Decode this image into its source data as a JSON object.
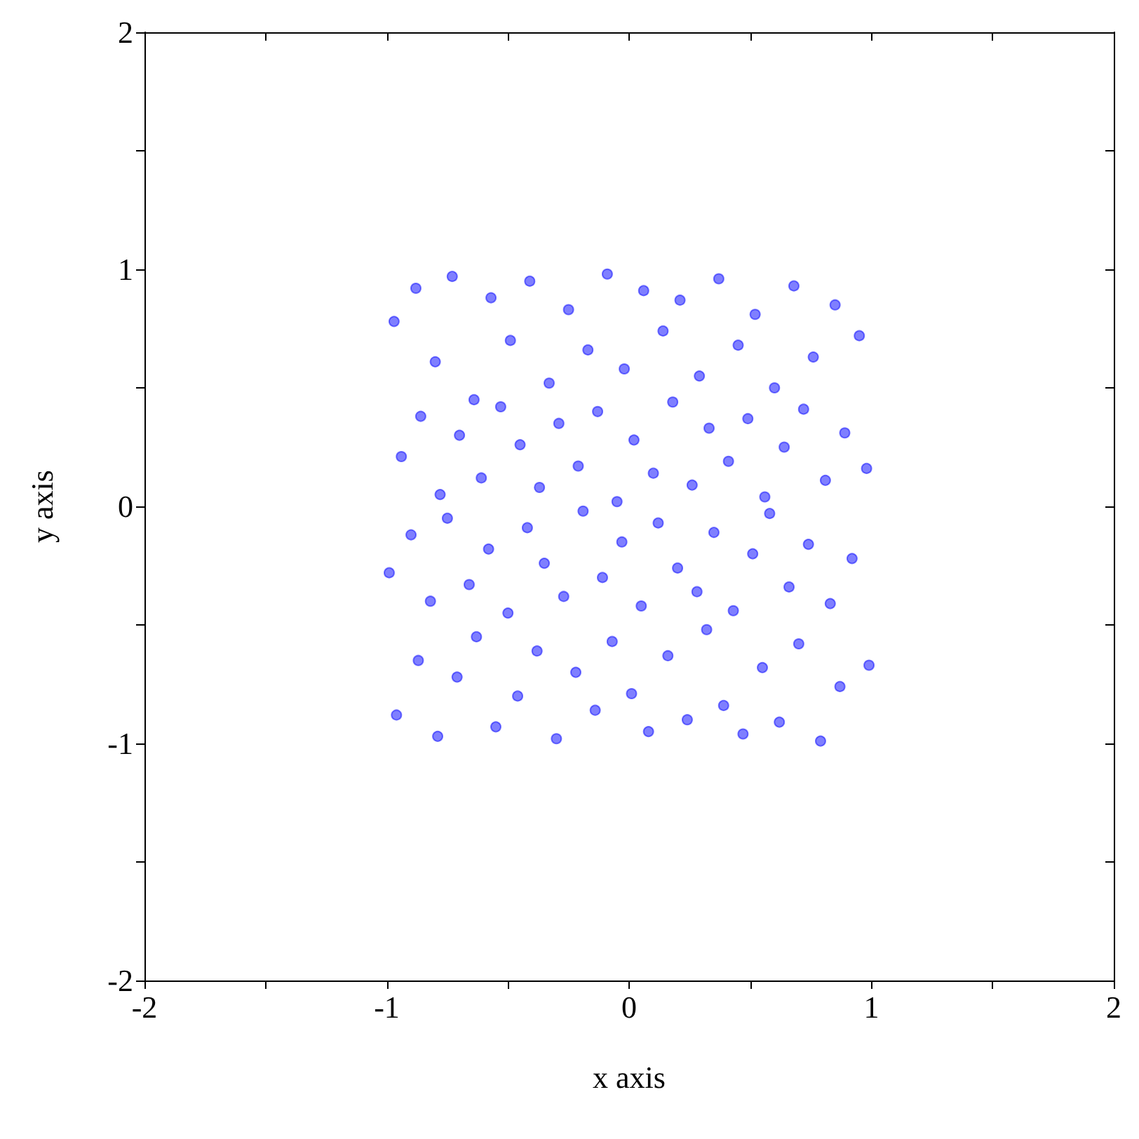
{
  "chart_data": {
    "type": "scatter",
    "xlabel": "x axis",
    "ylabel": "y axis",
    "xlim": [
      -2,
      2
    ],
    "ylim": [
      -2,
      2
    ],
    "xticks": [
      -2,
      {
        "value": -1.5,
        "label": null
      },
      -1,
      {
        "value": -0.5,
        "label": null
      },
      0,
      {
        "value": 0.5,
        "label": null
      },
      1,
      {
        "value": 1.5,
        "label": null
      },
      2
    ],
    "yticks": [
      -2,
      {
        "value": -1.5,
        "label": null
      },
      -1,
      {
        "value": -0.5,
        "label": null
      },
      0,
      {
        "value": 0.5,
        "label": null
      },
      1,
      {
        "value": 1.5,
        "label": null
      },
      2
    ],
    "marker": "circle",
    "series": [
      {
        "color": "#0000ff",
        "x": [
          -0.97,
          -0.88,
          -0.8,
          -0.73,
          -0.64,
          -0.57,
          -0.49,
          -0.41,
          -0.33,
          -0.25,
          -0.17,
          -0.09,
          -0.02,
          0.06,
          0.14,
          0.21,
          0.29,
          0.37,
          0.45,
          0.52,
          0.6,
          0.68,
          0.76,
          0.85,
          0.95,
          -0.94,
          -0.86,
          -0.78,
          -0.7,
          -0.61,
          -0.53,
          -0.45,
          -0.37,
          -0.29,
          -0.21,
          -0.13,
          -0.05,
          0.02,
          0.1,
          0.18,
          0.26,
          0.33,
          0.41,
          0.49,
          0.56,
          0.64,
          0.72,
          0.81,
          0.89,
          0.98,
          -0.99,
          -0.9,
          -0.82,
          -0.75,
          -0.66,
          -0.58,
          -0.5,
          -0.42,
          -0.35,
          -0.27,
          -0.19,
          -0.11,
          -0.03,
          0.05,
          0.12,
          0.2,
          0.28,
          0.35,
          0.43,
          0.51,
          0.58,
          0.66,
          0.74,
          0.83,
          0.92,
          -0.96,
          -0.87,
          -0.79,
          -0.71,
          -0.63,
          -0.55,
          -0.46,
          -0.38,
          -0.3,
          -0.22,
          -0.14,
          -0.07,
          0.01,
          0.08,
          0.16,
          0.24,
          0.32,
          0.39,
          0.47,
          0.55,
          0.62,
          0.7,
          0.79,
          0.87,
          0.99
        ],
        "values": [
          0.78,
          0.92,
          0.61,
          0.97,
          0.45,
          0.88,
          0.7,
          0.95,
          0.52,
          0.83,
          0.66,
          0.98,
          0.58,
          0.91,
          0.74,
          0.87,
          0.55,
          0.96,
          0.68,
          0.81,
          0.5,
          0.93,
          0.63,
          0.85,
          0.72,
          0.21,
          0.38,
          0.05,
          0.3,
          0.12,
          0.42,
          0.26,
          0.08,
          0.35,
          0.17,
          0.4,
          0.02,
          0.28,
          0.14,
          0.44,
          0.09,
          0.33,
          0.19,
          0.37,
          0.04,
          0.25,
          0.41,
          0.11,
          0.31,
          0.16,
          -0.28,
          -0.12,
          -0.4,
          -0.05,
          -0.33,
          -0.18,
          -0.45,
          -0.09,
          -0.24,
          -0.38,
          -0.02,
          -0.3,
          -0.15,
          -0.42,
          -0.07,
          -0.26,
          -0.36,
          -0.11,
          -0.44,
          -0.2,
          -0.03,
          -0.34,
          -0.16,
          -0.41,
          -0.22,
          -0.88,
          -0.65,
          -0.97,
          -0.72,
          -0.55,
          -0.93,
          -0.8,
          -0.61,
          -0.98,
          -0.7,
          -0.86,
          -0.57,
          -0.79,
          -0.95,
          -0.63,
          -0.9,
          -0.52,
          -0.84,
          -0.96,
          -0.68,
          -0.91,
          -0.58,
          -0.99,
          -0.76,
          -0.67
        ]
      }
    ]
  }
}
